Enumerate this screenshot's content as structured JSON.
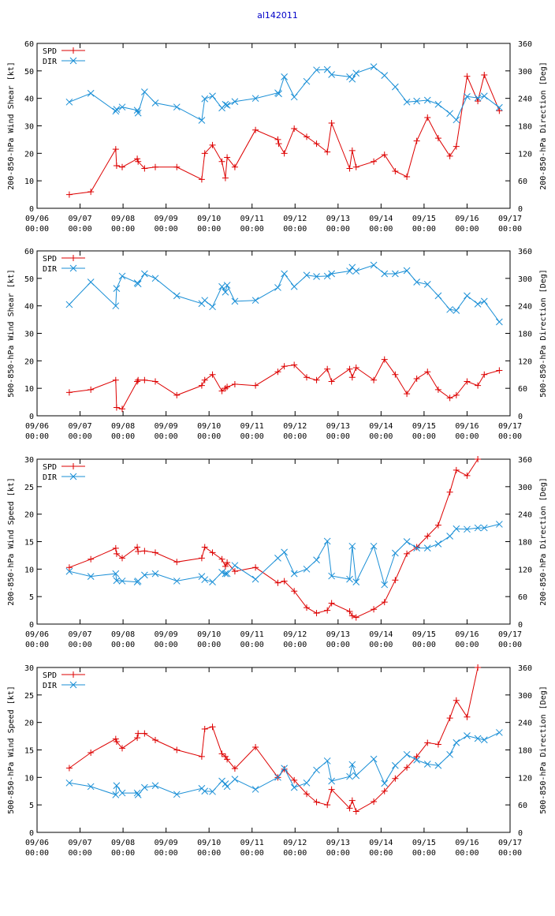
{
  "title": "al142011",
  "colors": {
    "spd": "#dd0000",
    "dir": "#1a8fd6",
    "axis": "#000000",
    "title": "#0000c8"
  },
  "x_ticks": [
    {
      "d": "09/06",
      "t": "00:00"
    },
    {
      "d": "09/07",
      "t": "00:00"
    },
    {
      "d": "09/08",
      "t": "00:00"
    },
    {
      "d": "09/09",
      "t": "00:00"
    },
    {
      "d": "09/10",
      "t": "00:00"
    },
    {
      "d": "09/11",
      "t": "00:00"
    },
    {
      "d": "09/12",
      "t": "00:00"
    },
    {
      "d": "09/13",
      "t": "00:00"
    },
    {
      "d": "09/14",
      "t": "00:00"
    },
    {
      "d": "09/15",
      "t": "00:00"
    },
    {
      "d": "09/16",
      "t": "00:00"
    },
    {
      "d": "09/17",
      "t": "00:00"
    }
  ],
  "chart_data": [
    {
      "type": "line",
      "ylabel": "200-850-hPa Wind Shear [kt]",
      "y2label": "200-850-hPa Direction [Deg]",
      "xlim": [
        0,
        11
      ],
      "ylim": [
        0,
        60
      ],
      "y2lim": [
        0,
        360
      ],
      "yticks": [
        0,
        10,
        20,
        30,
        40,
        50,
        60
      ],
      "y2ticks": [
        0,
        60,
        120,
        180,
        240,
        300,
        360
      ],
      "legend": [
        "SPD",
        "DIR"
      ],
      "series": [
        {
          "name": "SPD",
          "axis": "left",
          "marker": "plus",
          "x": [
            0.75,
            1.25,
            1.83,
            1.85,
            1.98,
            2.33,
            2.35,
            2.5,
            2.75,
            3.25,
            3.83,
            3.9,
            4.08,
            4.3,
            4.38,
            4.42,
            4.6,
            5.08,
            5.6,
            5.62,
            5.75,
            5.98,
            6.27,
            6.5,
            6.75,
            6.85,
            7.27,
            7.33,
            7.42,
            7.83,
            8.08,
            8.33,
            8.6,
            8.83,
            9.08,
            9.33,
            9.6,
            9.75,
            10.0,
            10.25,
            10.4,
            10.75
          ],
          "y": [
            5,
            6,
            21.5,
            15.5,
            15,
            18,
            17,
            14.5,
            15,
            15,
            10.5,
            20,
            23,
            17,
            11,
            18.5,
            15,
            28.5,
            25,
            23.5,
            20,
            29,
            26,
            23.5,
            20.5,
            31,
            14.5,
            21,
            15,
            17,
            19.5,
            13.5,
            11.5,
            24.5,
            33,
            25.5,
            19,
            22.5,
            48,
            39,
            48.5,
            35.5
          ]
        },
        {
          "name": "DIR",
          "axis": "right",
          "marker": "cross",
          "x": [
            0.75,
            1.25,
            1.83,
            1.85,
            1.98,
            2.33,
            2.35,
            2.5,
            2.75,
            3.25,
            3.83,
            3.9,
            4.08,
            4.3,
            4.38,
            4.42,
            4.6,
            5.08,
            5.6,
            5.62,
            5.75,
            5.98,
            6.27,
            6.5,
            6.75,
            6.85,
            7.27,
            7.33,
            7.42,
            7.83,
            8.08,
            8.33,
            8.6,
            8.83,
            9.08,
            9.33,
            9.6,
            9.75,
            10.0,
            10.25,
            10.4,
            10.75
          ],
          "y": [
            232,
            251,
            212,
            216,
            221,
            214,
            208,
            254,
            230,
            221,
            192,
            239,
            245,
            219,
            227,
            225,
            233,
            240,
            252,
            250,
            287,
            243,
            277,
            302,
            303,
            292,
            287,
            282,
            295,
            309,
            290,
            265,
            232,
            234,
            236,
            227,
            207,
            193,
            244,
            241,
            245,
            220
          ]
        }
      ]
    },
    {
      "type": "line",
      "ylabel": "500-850-hPa Wind Shear [kt]",
      "y2label": "500-850-hPa Direction [Deg]",
      "xlim": [
        0,
        11
      ],
      "ylim": [
        0,
        60
      ],
      "y2lim": [
        0,
        360
      ],
      "yticks": [
        0,
        10,
        20,
        30,
        40,
        50,
        60
      ],
      "y2ticks": [
        0,
        60,
        120,
        180,
        240,
        300,
        360
      ],
      "legend": [
        "SPD",
        "DIR"
      ],
      "series": [
        {
          "name": "SPD",
          "axis": "left",
          "marker": "plus",
          "x": [
            0.75,
            1.25,
            1.83,
            1.85,
            1.98,
            2.33,
            2.35,
            2.5,
            2.75,
            3.25,
            3.83,
            3.9,
            4.08,
            4.3,
            4.38,
            4.42,
            4.6,
            5.08,
            5.6,
            5.75,
            5.98,
            6.27,
            6.5,
            6.75,
            6.85,
            7.27,
            7.33,
            7.42,
            7.83,
            8.08,
            8.33,
            8.6,
            8.83,
            9.08,
            9.33,
            9.6,
            9.75,
            10.0,
            10.25,
            10.4,
            10.75
          ],
          "y": [
            8.5,
            9.5,
            13,
            3,
            2.5,
            12.5,
            13,
            13,
            12.5,
            7.5,
            11,
            13,
            15,
            9,
            10,
            10.5,
            11.5,
            11,
            16,
            18,
            18.5,
            14,
            13,
            17,
            12.5,
            17,
            14,
            17.5,
            13,
            20.5,
            15,
            8,
            13.5,
            16,
            9.5,
            6.5,
            7.5,
            12.5,
            11,
            15,
            16.5
          ]
        },
        {
          "name": "DIR",
          "axis": "right",
          "marker": "cross",
          "x": [
            0.75,
            1.25,
            1.83,
            1.85,
            1.98,
            2.33,
            2.35,
            2.5,
            2.75,
            3.25,
            3.83,
            3.9,
            4.08,
            4.3,
            4.38,
            4.42,
            4.6,
            5.08,
            5.6,
            5.75,
            5.98,
            6.27,
            6.5,
            6.75,
            6.85,
            7.27,
            7.33,
            7.42,
            7.83,
            8.08,
            8.33,
            8.6,
            8.83,
            9.08,
            9.33,
            9.6,
            9.75,
            10.0,
            10.25,
            10.4,
            10.75
          ],
          "y": [
            243,
            292,
            240,
            278,
            305,
            290,
            288,
            310,
            300,
            262,
            245,
            252,
            238,
            282,
            270,
            285,
            250,
            252,
            280,
            310,
            282,
            307,
            304,
            305,
            310,
            316,
            324,
            316,
            329,
            310,
            310,
            317,
            292,
            287,
            262,
            232,
            230,
            262,
            244,
            250,
            205
          ]
        }
      ]
    },
    {
      "type": "line",
      "ylabel": "200-850-hPa Wind Speed [kt]",
      "y2label": "200-850-hPa Direction [Deg]",
      "xlim": [
        0,
        11
      ],
      "ylim": [
        0,
        30
      ],
      "y2lim": [
        0,
        360
      ],
      "yticks": [
        0,
        5,
        10,
        15,
        20,
        25,
        30
      ],
      "y2ticks": [
        0,
        60,
        120,
        180,
        240,
        300,
        360
      ],
      "legend": [
        "SPD",
        "DIR"
      ],
      "series": [
        {
          "name": "SPD",
          "axis": "left",
          "marker": "plus",
          "x": [
            0.75,
            1.25,
            1.83,
            1.85,
            1.98,
            2.33,
            2.35,
            2.5,
            2.75,
            3.25,
            3.83,
            3.9,
            4.08,
            4.3,
            4.38,
            4.42,
            4.6,
            5.08,
            5.6,
            5.75,
            5.98,
            6.27,
            6.5,
            6.75,
            6.85,
            7.27,
            7.33,
            7.42,
            7.83,
            8.08,
            8.33,
            8.6,
            8.83,
            9.08,
            9.33,
            9.6,
            9.75,
            10.0,
            10.25
          ],
          "y": [
            10.3,
            11.8,
            13.8,
            12.8,
            12.0,
            14.0,
            13.2,
            13.3,
            13.0,
            11.3,
            12.0,
            14.0,
            13.0,
            11.8,
            10.5,
            11.2,
            9.6,
            10.3,
            7.5,
            7.8,
            6.0,
            3.0,
            2.0,
            2.5,
            3.8,
            2.3,
            1.5,
            1.2,
            2.7,
            4.0,
            8.0,
            12.8,
            14.0,
            16.0,
            18.0,
            24.0,
            28.0,
            27.0,
            30.0
          ]
        },
        {
          "name": "DIR",
          "axis": "right",
          "marker": "cross",
          "x": [
            0.75,
            1.25,
            1.83,
            1.85,
            1.98,
            2.33,
            2.35,
            2.5,
            2.75,
            3.25,
            3.83,
            3.9,
            4.08,
            4.3,
            4.38,
            4.42,
            4.6,
            5.08,
            5.6,
            5.75,
            5.98,
            6.27,
            6.5,
            6.75,
            6.85,
            7.27,
            7.33,
            7.42,
            7.83,
            8.08,
            8.33,
            8.6,
            8.83,
            9.08,
            9.33,
            9.6,
            9.75,
            10.0,
            10.25,
            10.4,
            10.75
          ],
          "y": [
            115,
            104,
            110,
            95,
            94,
            92,
            94,
            107,
            110,
            94,
            104,
            97,
            92,
            113,
            110,
            110,
            128,
            98,
            144,
            157,
            110,
            120,
            140,
            181,
            105,
            98,
            170,
            92,
            170,
            86,
            155,
            180,
            166,
            166,
            175,
            192,
            208,
            207,
            210,
            210,
            218
          ]
        }
      ]
    },
    {
      "type": "line",
      "ylabel": "500-850-hPa Wind Speed [kt]",
      "y2label": "500-850-hPa Direction [Deg]",
      "xlim": [
        0,
        11
      ],
      "ylim": [
        0,
        30
      ],
      "y2lim": [
        0,
        360
      ],
      "yticks": [
        0,
        5,
        10,
        15,
        20,
        25,
        30
      ],
      "y2ticks": [
        0,
        60,
        120,
        180,
        240,
        300,
        360
      ],
      "legend": [
        "SPD",
        "DIR"
      ],
      "series": [
        {
          "name": "SPD",
          "axis": "left",
          "marker": "plus",
          "x": [
            0.75,
            1.25,
            1.83,
            1.85,
            1.98,
            2.33,
            2.35,
            2.5,
            2.75,
            3.25,
            3.83,
            3.9,
            4.08,
            4.3,
            4.38,
            4.42,
            4.6,
            5.08,
            5.6,
            5.75,
            5.98,
            6.27,
            6.5,
            6.75,
            6.85,
            7.27,
            7.33,
            7.42,
            7.83,
            8.08,
            8.33,
            8.6,
            8.83,
            9.08,
            9.33,
            9.6,
            9.75,
            10.0,
            10.25
          ],
          "y": [
            11.7,
            14.5,
            17.0,
            16.5,
            15.3,
            17.2,
            18.0,
            18.0,
            16.8,
            15.0,
            13.8,
            18.8,
            19.2,
            14.3,
            13.8,
            13.3,
            11.6,
            15.5,
            10.0,
            11.5,
            9.5,
            7.0,
            5.5,
            5.0,
            7.8,
            4.4,
            5.8,
            3.8,
            5.6,
            7.5,
            9.8,
            11.8,
            13.8,
            16.3,
            16.0,
            20.8,
            24.0,
            21.0,
            30.0
          ]
        },
        {
          "name": "DIR",
          "axis": "right",
          "marker": "cross",
          "x": [
            0.75,
            1.25,
            1.83,
            1.85,
            1.98,
            2.33,
            2.35,
            2.5,
            2.75,
            3.25,
            3.83,
            3.9,
            4.08,
            4.3,
            4.38,
            4.42,
            4.6,
            5.08,
            5.6,
            5.75,
            5.98,
            6.27,
            6.5,
            6.75,
            6.85,
            7.27,
            7.33,
            7.42,
            7.83,
            8.08,
            8.33,
            8.6,
            8.83,
            9.08,
            9.33,
            9.6,
            9.75,
            10.0,
            10.25,
            10.4,
            10.75
          ],
          "y": [
            108,
            100,
            82,
            102,
            86,
            86,
            82,
            98,
            102,
            83,
            96,
            90,
            89,
            112,
            106,
            100,
            116,
            94,
            120,
            140,
            98,
            108,
            136,
            156,
            112,
            122,
            148,
            124,
            160,
            107,
            146,
            170,
            158,
            149,
            146,
            170,
            196,
            211,
            205,
            202,
            218
          ]
        }
      ]
    }
  ]
}
